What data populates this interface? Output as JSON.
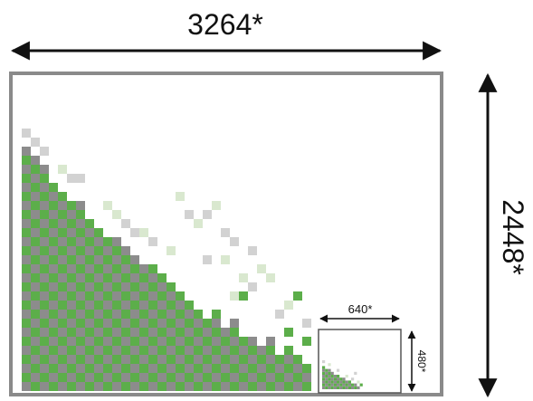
{
  "labels": {
    "large_width": "3264*",
    "large_height": "2448*",
    "small_width": "640*",
    "small_height": "480*"
  },
  "colors": {
    "frame": "#8a8a8a",
    "arrow": "#111111",
    "green": "#5cae4a",
    "gray": "#8c8c8c",
    "light_green": "#d9e8cf",
    "light_gray": "#d2d2d2"
  }
}
